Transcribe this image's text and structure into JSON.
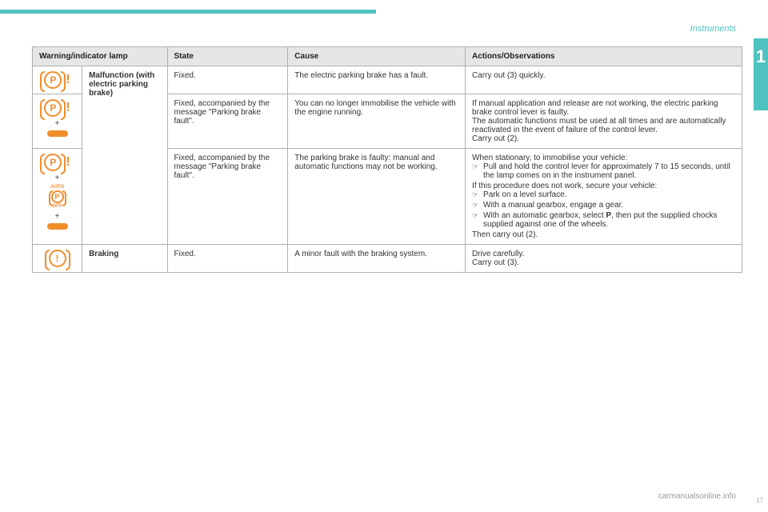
{
  "colors": {
    "accent": "#4fc3bf",
    "orange": "#f18e2c",
    "header_bg": "#e6e6e6",
    "border": "#b0b0b0"
  },
  "section_title": "Instruments",
  "chapter": "1",
  "headers": {
    "lamp": "Warning/indicator lamp",
    "state": "State",
    "cause": "Cause",
    "actions": "Actions/Observations"
  },
  "rows": {
    "r1": {
      "name": "Malfunction (with electric parking brake)",
      "state": "Fixed.",
      "cause": "The electric parking brake has a fault.",
      "action": "Carry out (3) quickly."
    },
    "r2": {
      "state": "Fixed, accompanied by the message \"Parking brake fault\".",
      "cause": "You can no longer immobilise the vehicle with the engine running.",
      "action_p1": "If manual application and release are not working, the electric parking brake control lever is faulty.",
      "action_p2": "The automatic functions must be used at all times and are automatically reactivated in the event of failure of the control lever.",
      "action_p3": "Carry out (2)."
    },
    "r3": {
      "state": "Fixed, accompanied by the message \"Parking brake fault\".",
      "cause": "The parking brake is faulty: manual and automatic functions may not be working.",
      "action_intro": "When stationary, to immobilise your vehicle:",
      "action_b1": "Pull and hold the control lever for approximately 7 to 15 seconds, until the lamp comes on in the instrument panel.",
      "action_mid": "If this procedure does not work, secure your vehicle:",
      "action_b2": "Park on a level surface.",
      "action_b3": "With a manual gearbox, engage a gear.",
      "action_b4a": "With an automatic gearbox, select ",
      "action_b4b": "P",
      "action_b4c": ", then put the supplied chocks supplied against one of the wheels.",
      "action_end": "Then carry out (2)."
    },
    "r4": {
      "name": "Braking",
      "state": "Fixed.",
      "cause": "A minor fault with the braking system.",
      "action_p1": "Drive carefully.",
      "action_p2": "Carry out (3)."
    }
  },
  "icons": {
    "plus": "+",
    "auto": "AUTO",
    "off": "OFF",
    "p": "P",
    "bang": "!"
  },
  "footer": {
    "watermark": "carmanualsonline.info",
    "page": "17"
  }
}
